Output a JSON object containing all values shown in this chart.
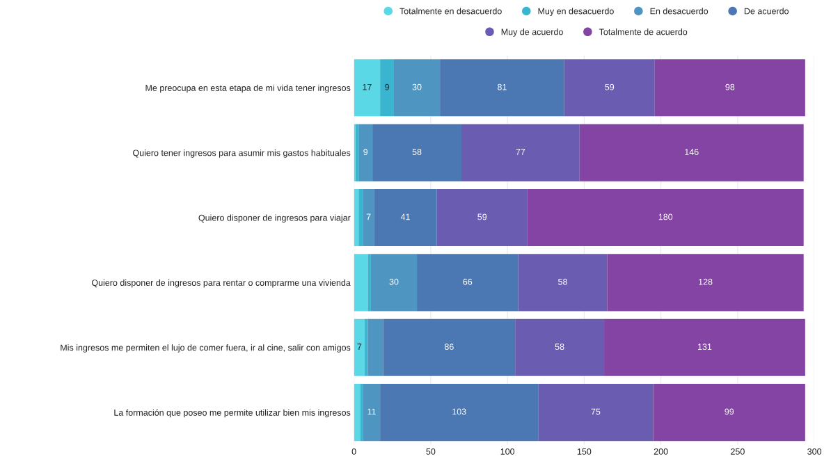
{
  "chart_data": {
    "type": "bar",
    "orientation": "horizontal",
    "stacked": true,
    "categories": [
      "Me preocupa en esta etapa de mi vida tener ingresos",
      "Quiero tener ingresos para asumir mis gastos habituales",
      "Quiero disponer de ingresos para viajar",
      "Quiero disponer de ingresos para rentar o comprarme una vivienda",
      "Mis ingresos me permiten el lujo de comer fuera, ir al cine, salir con amigos",
      "La formación que poseo me permite utilizar bien mis ingresos"
    ],
    "series": [
      {
        "name": "Totalmente en desacuerdo",
        "color": "#5ad8e6",
        "values": [
          17,
          1,
          3,
          9,
          7,
          4
        ],
        "value_labels": [
          "17",
          null,
          null,
          null,
          "7",
          null
        ]
      },
      {
        "name": "Muy en desacuerdo",
        "color": "#3ab5cf",
        "values": [
          9,
          2,
          3,
          2,
          2,
          2
        ],
        "value_labels": [
          "9",
          null,
          null,
          null,
          null,
          null
        ]
      },
      {
        "name": "En desacuerdo",
        "color": "#4f95c2",
        "values": [
          30,
          9,
          7,
          30,
          10,
          11
        ],
        "value_labels": [
          "30",
          "9",
          "7",
          "30",
          null,
          "11"
        ]
      },
      {
        "name": "De acuerdo",
        "color": "#4b78b2",
        "values": [
          81,
          58,
          41,
          66,
          86,
          103
        ],
        "value_labels": [
          "81",
          "58",
          "41",
          "66",
          "86",
          "103"
        ]
      },
      {
        "name": "Muy de acuerdo",
        "color": "#6a5cb0",
        "values": [
          59,
          77,
          59,
          58,
          58,
          75
        ],
        "value_labels": [
          "59",
          "77",
          "59",
          "58",
          "58",
          "75"
        ]
      },
      {
        "name": "Totalmente de acuerdo",
        "color": "#8444a3",
        "values": [
          98,
          146,
          180,
          128,
          131,
          99
        ],
        "value_labels": [
          "98",
          "146",
          "180",
          "128",
          "131",
          "99"
        ]
      }
    ],
    "xlim": [
      0,
      300
    ],
    "xticks": [
      0,
      50,
      100,
      150,
      200,
      250,
      300
    ],
    "grid": "x",
    "legend": "top"
  }
}
